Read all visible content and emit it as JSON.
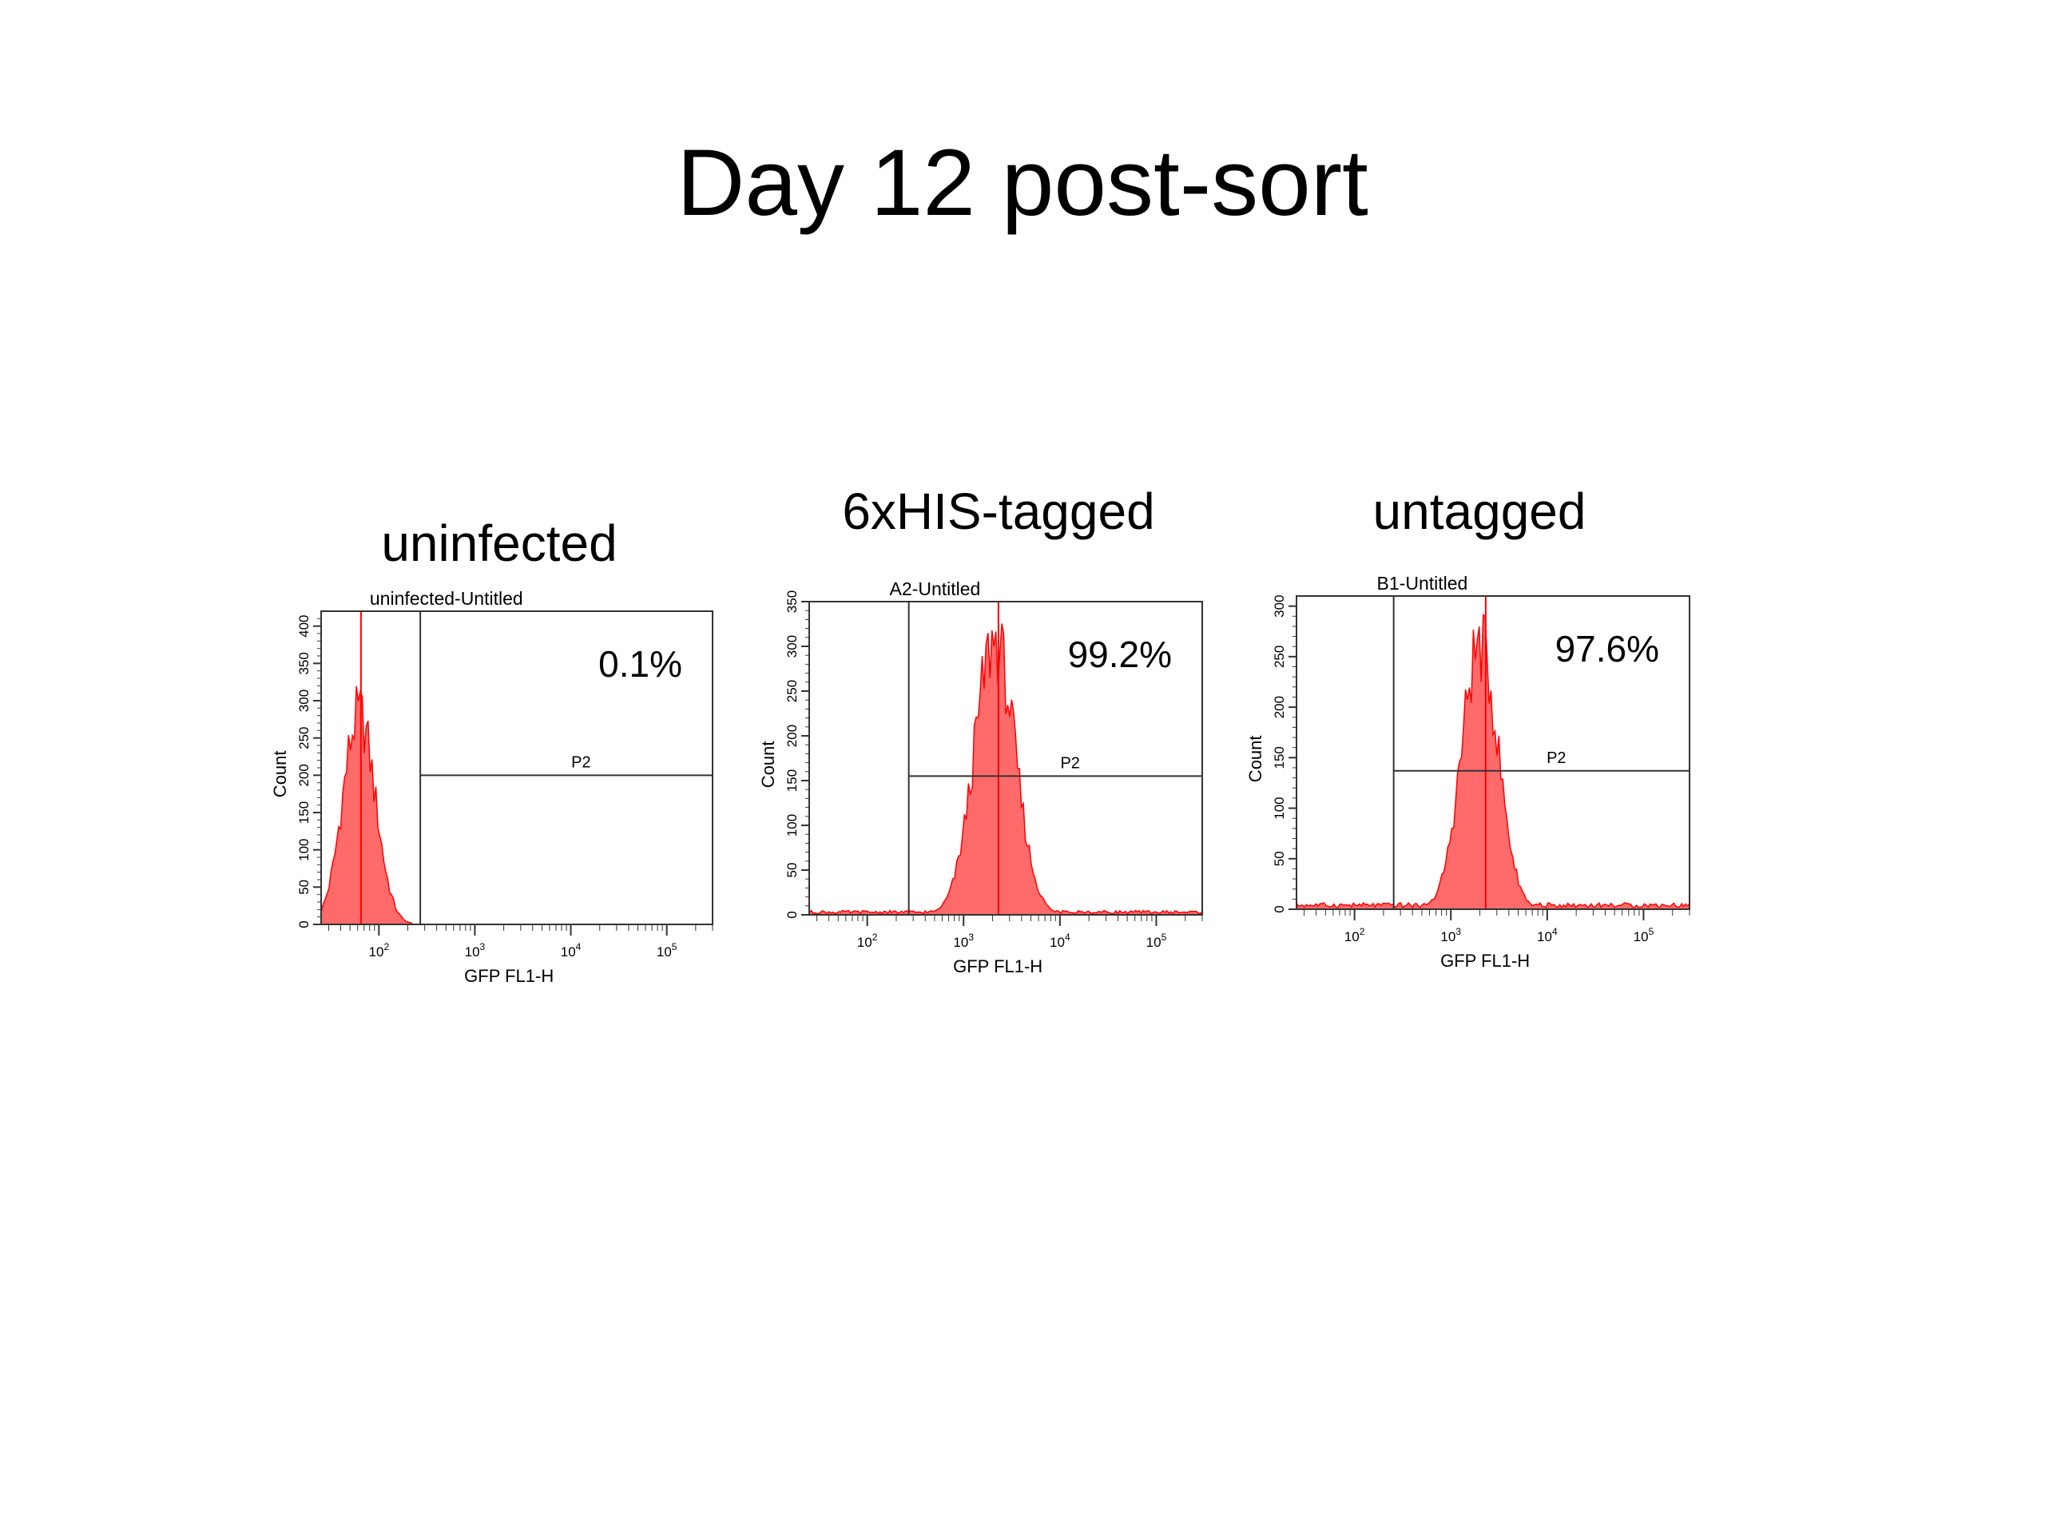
{
  "title": "Day 12 post-sort",
  "chart_data": [
    {
      "type": "histogram",
      "panel_label": "uninfected",
      "plot_title": "uninfected-Untitled",
      "xlabel": "GFP FL1-H",
      "ylabel": "Count",
      "x_scale": "log",
      "xlim": [
        25,
        300000
      ],
      "ylim": [
        0,
        420
      ],
      "y_ticks": [
        0,
        50,
        100,
        150,
        200,
        250,
        300,
        350,
        400
      ],
      "x_ticks": [
        {
          "value": 100,
          "label": "10^2"
        },
        {
          "value": 1000,
          "label": "10^3"
        },
        {
          "value": 10000,
          "label": "10^4"
        },
        {
          "value": 100000,
          "label": "10^5"
        }
      ],
      "gate": {
        "name": "P2",
        "x_min": 270,
        "y_level": 200,
        "percent": "0.1%"
      },
      "distribution": {
        "peak_x": 62,
        "peak_count": 290,
        "spike_x": 65,
        "spike_count": 420,
        "spread_log10": 0.17,
        "background": 0
      },
      "color": "#ff6b6b",
      "edge_color": "#ff0000"
    },
    {
      "type": "histogram",
      "panel_label": "6xHIS-tagged",
      "plot_title": "A2-Untitled",
      "xlabel": "GFP FL1-H",
      "ylabel": "Count",
      "x_scale": "log",
      "xlim": [
        25,
        300000
      ],
      "ylim": [
        0,
        350
      ],
      "y_ticks": [
        0,
        50,
        100,
        150,
        200,
        250,
        300,
        350
      ],
      "x_ticks": [
        {
          "value": 100,
          "label": "10^2"
        },
        {
          "value": 1000,
          "label": "10^3"
        },
        {
          "value": 10000,
          "label": "10^4"
        },
        {
          "value": 100000,
          "label": "10^5"
        }
      ],
      "gate": {
        "name": "P2",
        "x_min": 270,
        "y_level": 155,
        "percent": "99.2%"
      },
      "distribution": {
        "peak_x": 2100,
        "peak_count": 315,
        "spike_x": 2300,
        "spike_count": 350,
        "spread_log10": 0.21,
        "background": 3
      },
      "color": "#ff6b6b",
      "edge_color": "#ff0000"
    },
    {
      "type": "histogram",
      "panel_label": "untagged",
      "plot_title": "B1-Untitled",
      "xlabel": "GFP FL1-H",
      "ylabel": "Count",
      "x_scale": "log",
      "xlim": [
        25,
        300000
      ],
      "ylim": [
        0,
        310
      ],
      "y_ticks": [
        0,
        50,
        100,
        150,
        200,
        250,
        300
      ],
      "x_ticks": [
        {
          "value": 100,
          "label": "10^2"
        },
        {
          "value": 1000,
          "label": "10^3"
        },
        {
          "value": 10000,
          "label": "10^4"
        },
        {
          "value": 100000,
          "label": "10^5"
        }
      ],
      "gate": {
        "name": "P2",
        "x_min": 255,
        "y_level": 137,
        "percent": "97.6%"
      },
      "distribution": {
        "peak_x": 2000,
        "peak_count": 270,
        "spike_x": 2300,
        "spike_count": 310,
        "spread_log10": 0.19,
        "background": 4
      },
      "color": "#ff6b6b",
      "edge_color": "#ff0000"
    }
  ]
}
